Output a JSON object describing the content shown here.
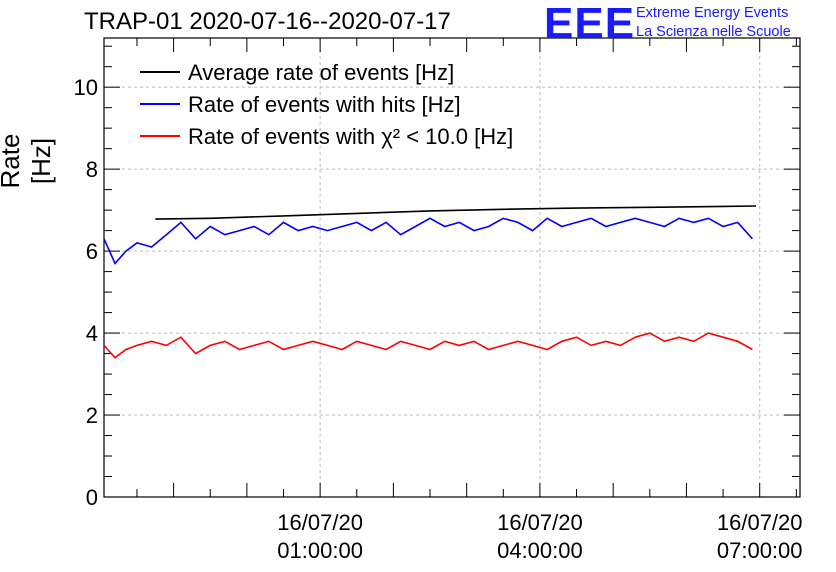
{
  "header": {
    "title": "TRAP-01 2020-07-16--2020-07-17",
    "logo_text": "EEE",
    "logo_line1": "Extreme Energy Events",
    "logo_line2": "La Scienza nelle Scuole"
  },
  "colors": {
    "average": "#000000",
    "hits": "#0000ff",
    "chi2": "#ff0000",
    "logo": "#1a1aff",
    "grid": "#bbbbbb"
  },
  "chart_data": {
    "type": "line",
    "title": "TRAP-01 2020-07-16--2020-07-17",
    "xlabel": "",
    "ylabel": "Rate [Hz]",
    "ylim": [
      0,
      11.2
    ],
    "xlim_hours": [
      -1.95,
      7.55
    ],
    "grid": true,
    "legend_position": "top-left",
    "y_ticks": [
      "0",
      "2",
      "4",
      "6",
      "8",
      "10"
    ],
    "x_ticks": [
      {
        "date": "16/07/20",
        "time": "01:00:00",
        "hour": 1
      },
      {
        "date": "16/07/20",
        "time": "04:00:00",
        "hour": 4
      },
      {
        "date": "16/07/20",
        "time": "07:00:00",
        "hour": 7
      }
    ],
    "series": [
      {
        "name": "Average rate of events [Hz]",
        "color": "#000000",
        "x": [
          -1.25,
          -0.5,
          0.5,
          1.5,
          2.5,
          3.5,
          4.5,
          5.5,
          6.5,
          6.95
        ],
        "y": [
          6.78,
          6.8,
          6.86,
          6.92,
          6.98,
          7.02,
          7.05,
          7.07,
          7.09,
          7.1
        ]
      },
      {
        "name": "Rate of events with hits [Hz]",
        "color": "#0000ff",
        "x": [
          -1.95,
          -1.8,
          -1.65,
          -1.5,
          -1.3,
          -1.1,
          -0.9,
          -0.7,
          -0.5,
          -0.3,
          -0.1,
          0.1,
          0.3,
          0.5,
          0.7,
          0.9,
          1.1,
          1.3,
          1.5,
          1.7,
          1.9,
          2.1,
          2.3,
          2.5,
          2.7,
          2.9,
          3.1,
          3.3,
          3.5,
          3.7,
          3.9,
          4.1,
          4.3,
          4.5,
          4.7,
          4.9,
          5.1,
          5.3,
          5.5,
          5.7,
          5.9,
          6.1,
          6.3,
          6.5,
          6.7,
          6.9
        ],
        "y": [
          6.3,
          5.7,
          6.0,
          6.2,
          6.1,
          6.4,
          6.7,
          6.3,
          6.6,
          6.4,
          6.5,
          6.6,
          6.4,
          6.7,
          6.5,
          6.6,
          6.5,
          6.6,
          6.7,
          6.5,
          6.7,
          6.4,
          6.6,
          6.8,
          6.6,
          6.7,
          6.5,
          6.6,
          6.8,
          6.7,
          6.5,
          6.8,
          6.6,
          6.7,
          6.8,
          6.6,
          6.7,
          6.8,
          6.7,
          6.6,
          6.8,
          6.7,
          6.8,
          6.6,
          6.7,
          6.3
        ]
      },
      {
        "name": "Rate of events with χ² < 10.0 [Hz]",
        "color": "#ff0000",
        "x": [
          -1.95,
          -1.8,
          -1.65,
          -1.5,
          -1.3,
          -1.1,
          -0.9,
          -0.7,
          -0.5,
          -0.3,
          -0.1,
          0.1,
          0.3,
          0.5,
          0.7,
          0.9,
          1.1,
          1.3,
          1.5,
          1.7,
          1.9,
          2.1,
          2.3,
          2.5,
          2.7,
          2.9,
          3.1,
          3.3,
          3.5,
          3.7,
          3.9,
          4.1,
          4.3,
          4.5,
          4.7,
          4.9,
          5.1,
          5.3,
          5.5,
          5.7,
          5.9,
          6.1,
          6.3,
          6.5,
          6.7,
          6.9
        ],
        "y": [
          3.7,
          3.4,
          3.6,
          3.7,
          3.8,
          3.7,
          3.9,
          3.5,
          3.7,
          3.8,
          3.6,
          3.7,
          3.8,
          3.6,
          3.7,
          3.8,
          3.7,
          3.6,
          3.8,
          3.7,
          3.6,
          3.8,
          3.7,
          3.6,
          3.8,
          3.7,
          3.8,
          3.6,
          3.7,
          3.8,
          3.7,
          3.6,
          3.8,
          3.9,
          3.7,
          3.8,
          3.7,
          3.9,
          4.0,
          3.8,
          3.9,
          3.8,
          4.0,
          3.9,
          3.8,
          3.6
        ]
      }
    ]
  }
}
